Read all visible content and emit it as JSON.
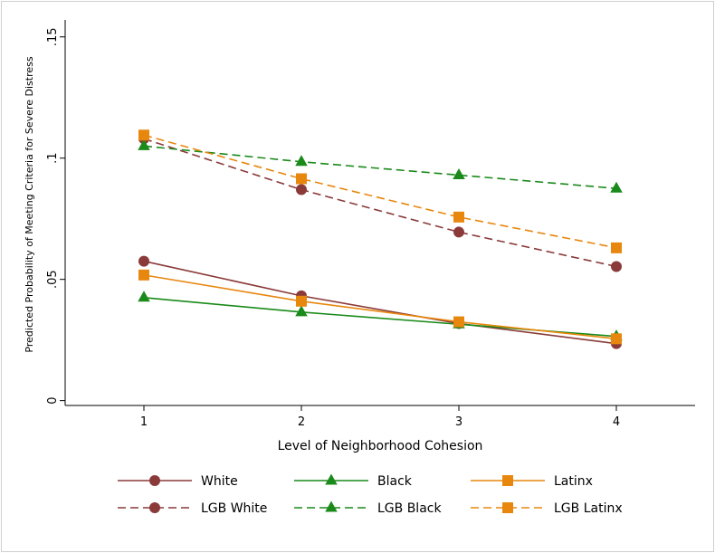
{
  "chart_data": {
    "type": "line",
    "title": "",
    "xlabel": "Level of Neighborhood Cohesion",
    "ylabel": "Predicted Probability of Meeting Criteria for Severe Distress",
    "x": [
      1,
      2,
      3,
      4
    ],
    "x_tick_labels": [
      "1",
      "2",
      "3",
      "4"
    ],
    "xlim": [
      0.5,
      4.5
    ],
    "y_ticks": [
      0,
      0.05,
      0.1,
      0.15
    ],
    "y_tick_labels": [
      "0",
      ".05",
      ".1",
      ".15"
    ],
    "ylim": [
      -0.002,
      0.157
    ],
    "grid": false,
    "legend_position": "bottom",
    "series": [
      {
        "name": "White",
        "color": "#8b3a3a",
        "marker": "circle",
        "dash": "solid",
        "values": [
          0.0575,
          0.0432,
          0.0318,
          0.0235
        ]
      },
      {
        "name": "Black",
        "color": "#1a8a1a",
        "marker": "triangle",
        "dash": "solid",
        "values": [
          0.0425,
          0.0365,
          0.0315,
          0.0265
        ]
      },
      {
        "name": "Latinx",
        "color": "#e8870e",
        "marker": "square",
        "dash": "solid",
        "values": [
          0.0518,
          0.041,
          0.0325,
          0.0255
        ]
      },
      {
        "name": "LGB White",
        "color": "#8b3a3a",
        "marker": "circle",
        "dash": "dashed",
        "values": [
          0.108,
          0.087,
          0.0695,
          0.0553
        ]
      },
      {
        "name": "LGB Black",
        "color": "#1a8a1a",
        "marker": "triangle",
        "dash": "dashed",
        "values": [
          0.105,
          0.0985,
          0.093,
          0.0875
        ]
      },
      {
        "name": "LGB Latinx",
        "color": "#e8870e",
        "marker": "square",
        "dash": "dashed",
        "values": [
          0.1095,
          0.0915,
          0.0757,
          0.063
        ]
      }
    ]
  }
}
